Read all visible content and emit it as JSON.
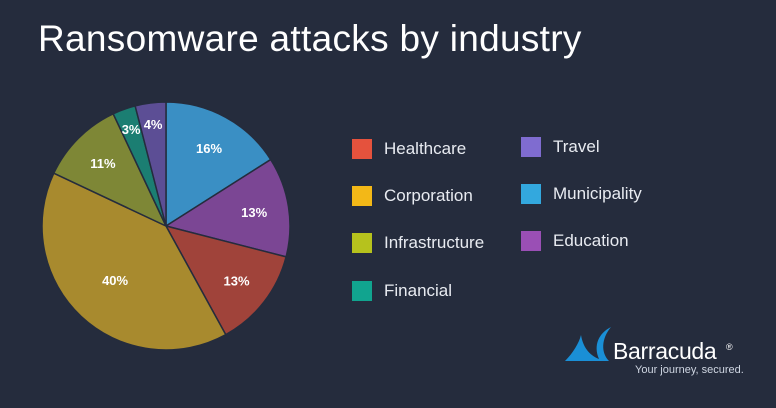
{
  "title": "Ransomware attacks by industry",
  "chart_data": {
    "type": "pie",
    "title": "Ransomware attacks by industry",
    "unit": "%",
    "slices": [
      {
        "label": "Municipality",
        "value": 16,
        "display": "16%",
        "color": "#3a8fc4"
      },
      {
        "label": "Education",
        "value": 13,
        "display": "13%",
        "color": "#7b4694"
      },
      {
        "label": "Healthcare",
        "value": 13,
        "display": "13%",
        "color": "#a0433a"
      },
      {
        "label": "Corporation",
        "value": 40,
        "display": "40%",
        "color": "#a88a2e"
      },
      {
        "label": "Infrastructure",
        "value": 11,
        "display": "11%",
        "color": "#7e8736"
      },
      {
        "label": "Financial",
        "value": 3,
        "display": "3%",
        "color": "#1b7e72"
      },
      {
        "label": "Travel",
        "value": 4,
        "display": "4%",
        "color": "#5c4e95"
      }
    ],
    "legend": {
      "placement": "right",
      "items": [
        {
          "label": "Healthcare",
          "color": "#e5523d"
        },
        {
          "label": "Corporation",
          "color": "#f3b817"
        },
        {
          "label": "Infrastructure",
          "color": "#b6c21d"
        },
        {
          "label": "Financial",
          "color": "#11a48f"
        },
        {
          "label": "Travel",
          "color": "#7f6cd0"
        },
        {
          "label": "Municipality",
          "color": "#33a8de"
        },
        {
          "label": "Education",
          "color": "#9a4fb5"
        }
      ]
    }
  },
  "brand": {
    "name": "Barracuda",
    "registered": "®",
    "tagline": "Your journey, secured.",
    "logo_color": "#1a8fd6"
  }
}
